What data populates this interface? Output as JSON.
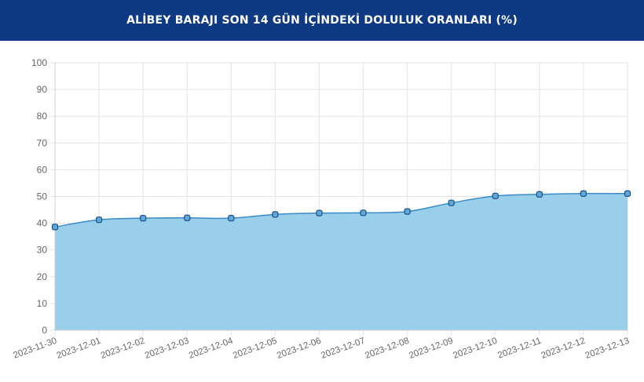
{
  "header": {
    "title": "ALİBEY BARAJI SON 14 GÜN İÇİNDEKİ DOLULUK ORANLARI (%)"
  },
  "colors": {
    "header_bg": "#0d3a82",
    "line": "#3a8cc8",
    "area": "#99cfeb",
    "grid": "#e3e3e3",
    "point_fill": "#5fa8d8",
    "point_stroke": "#1b4f8c"
  },
  "chart_data": {
    "type": "area",
    "title": "ALİBEY BARAJI SON 14 GÜN İÇİNDEKİ DOLULUK ORANLARI (%)",
    "xlabel": "",
    "ylabel": "",
    "ylim": [
      0,
      100
    ],
    "yticks": [
      0,
      10,
      20,
      30,
      40,
      50,
      60,
      70,
      80,
      90,
      100
    ],
    "grid": true,
    "legend": "none",
    "categories": [
      "2023-11-30",
      "2023-12-01",
      "2023-12-02",
      "2023-12-03",
      "2023-12-04",
      "2023-12-05",
      "2023-12-06",
      "2023-12-07",
      "2023-12-08",
      "2023-12-09",
      "2023-12-10",
      "2023-12-11",
      "2023-12-12",
      "2023-12-13"
    ],
    "series": [
      {
        "values": [
          38.6,
          41.3,
          41.9,
          42.0,
          41.9,
          43.3,
          43.8,
          43.9,
          44.4,
          47.6,
          50.2,
          50.8,
          51.1,
          51.1
        ]
      }
    ]
  }
}
